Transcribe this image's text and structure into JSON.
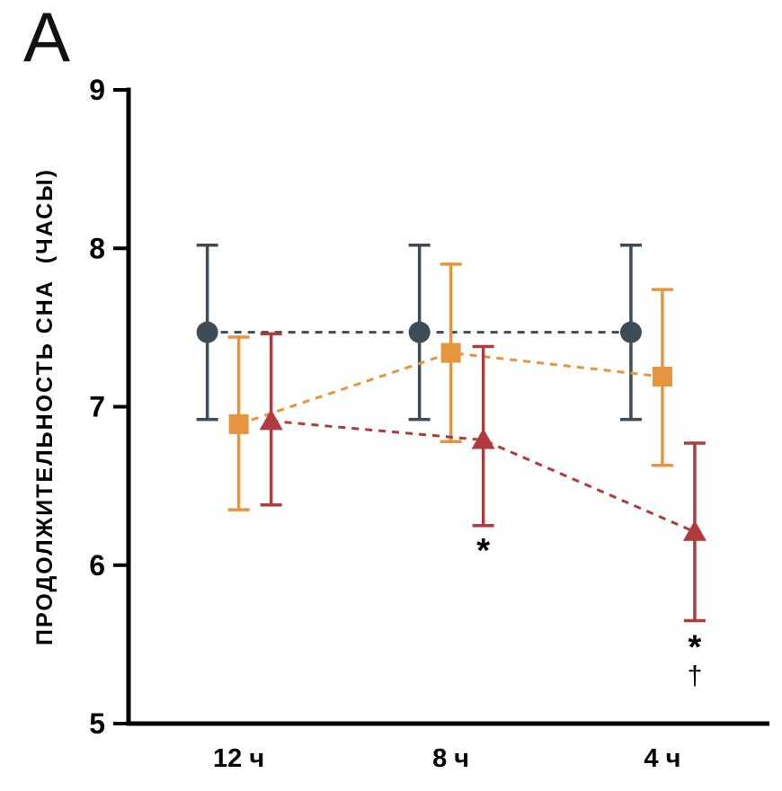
{
  "panel_label": "A",
  "chart_data": {
    "type": "line",
    "title": "",
    "xlabel": "",
    "ylabel": "ПРОДОЛЖИТЕЛЬНОСТЬ СНА  (ЧАСЫ)",
    "ylim": [
      5,
      9
    ],
    "yticks": [
      5,
      6,
      7,
      8,
      9
    ],
    "categories": [
      "12 ч",
      "8 ч",
      "4 ч"
    ],
    "grid": false,
    "legend": "none",
    "series": [
      {
        "name": "circle-group",
        "marker": "circle",
        "color": "#3d4c55",
        "linestyle": "dashed",
        "values": [
          7.47,
          7.47,
          7.47
        ],
        "err_low": [
          6.92,
          6.92,
          6.92
        ],
        "err_high": [
          8.02,
          8.02,
          8.02
        ]
      },
      {
        "name": "square-group",
        "marker": "square",
        "color": "#e6953f",
        "linestyle": "dashed",
        "values": [
          6.89,
          7.34,
          7.19
        ],
        "err_low": [
          6.35,
          6.78,
          6.63
        ],
        "err_high": [
          7.44,
          7.9,
          7.74
        ]
      },
      {
        "name": "triangle-group",
        "marker": "triangle",
        "color": "#b03a3e",
        "linestyle": "dashed",
        "values": [
          6.91,
          6.79,
          6.21
        ],
        "err_low": [
          6.38,
          6.25,
          5.65
        ],
        "err_high": [
          7.46,
          7.38,
          6.77
        ]
      }
    ],
    "annotations": [
      {
        "text": "*",
        "category_index": 1,
        "series_index": 2,
        "y": 6.1
      },
      {
        "text": "*",
        "category_index": 2,
        "series_index": 2,
        "y": 5.49
      },
      {
        "text": "†",
        "category_index": 2,
        "series_index": 2,
        "y": 5.31
      }
    ]
  }
}
